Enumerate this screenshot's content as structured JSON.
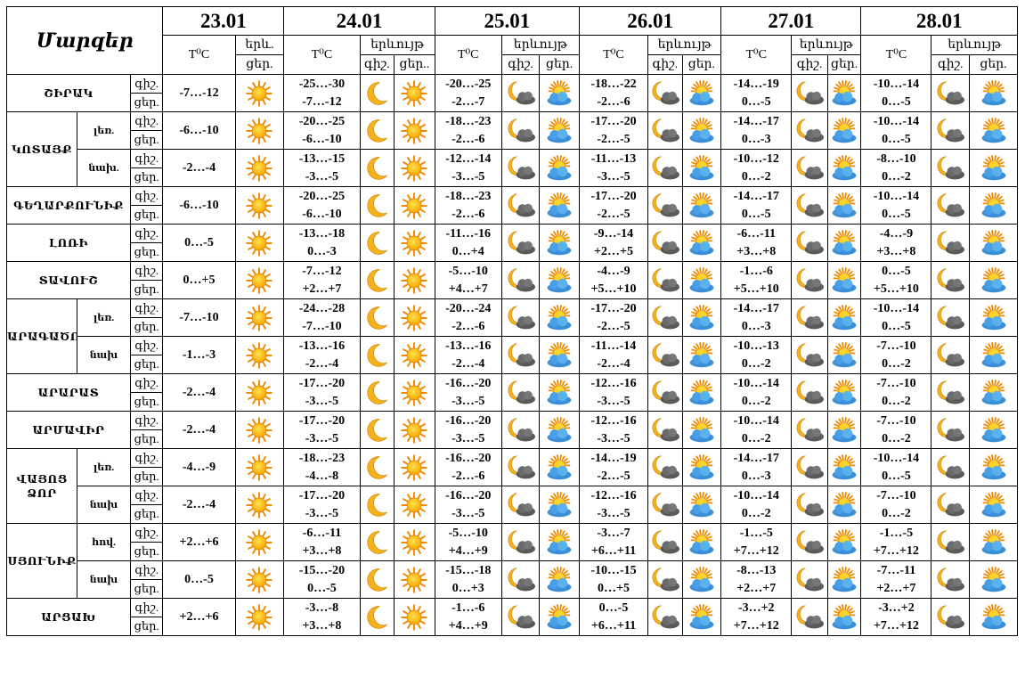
{
  "header": {
    "title": "Մարզեր",
    "dates": [
      "23.01",
      "24.01",
      "25.01",
      "26.01",
      "27.01",
      "28.01"
    ],
    "temp_label": "T⁰C",
    "phen_label_first": "երև.",
    "phen_label": "երևույթ",
    "night": "գիշ.",
    "day": "ցեր.",
    "day_short_24": "ցեր.."
  },
  "rows_dn": {
    "night": "գիշ.",
    "day": "ցեր."
  },
  "icon_colors": {
    "sun": "#f7a600",
    "moon": "#f6b21d",
    "cloud_dark": "#5a5a5a",
    "cloud_blue": "#3b8fd6"
  },
  "regions": [
    {
      "name": "ՇԻՐԱԿ",
      "t1": "-7…-12",
      "d24n": "-25…-30",
      "d24d": "-7…-12",
      "d25n": "-20…-25",
      "d25d": "-2…-7",
      "d26n": "-18…-22",
      "d26d": "-2…-6",
      "d27n": "-14…-19",
      "d27d": "0…-5",
      "d28n": "-10…-14",
      "d28d": "0…-5"
    },
    {
      "name": "ԿՈՏԱՅՔ",
      "sub": "լեռ.",
      "t1": "-6…-10",
      "d24n": "-20…-25",
      "d24d": "-6…-10",
      "d25n": "-18…-23",
      "d25d": "-2…-6",
      "d26n": "-17…-20",
      "d26d": "-2…-5",
      "d27n": "-14…-17",
      "d27d": "0…-3",
      "d28n": "-10…-14",
      "d28d": "0…-5"
    },
    {
      "sub": "նախ.",
      "t1": "-2…-4",
      "d24n": "-13…-15",
      "d24d": "-3…-5",
      "d25n": "-12…-14",
      "d25d": "-3…-5",
      "d26n": "-11…-13",
      "d26d": "-3…-5",
      "d27n": "-10…-12",
      "d27d": "0…-2",
      "d28n": "-8…-10",
      "d28d": "0…-2"
    },
    {
      "name": "ԳԵՂԱՐՔՈՒՆԻՔ",
      "t1": "-6…-10",
      "d24n": "-20…-25",
      "d24d": "-6…-10",
      "d25n": "-18…-23",
      "d25d": "-2…-6",
      "d26n": "-17…-20",
      "d26d": "-2…-5",
      "d27n": "-14…-17",
      "d27d": "0…-5",
      "d28n": "-10…-14",
      "d28d": "0…-5"
    },
    {
      "name": "ԼՈՌԻ",
      "t1": "0…-5",
      "d24n": "-13…-18",
      "d24d": "0…-3",
      "d25n": "-11…-16",
      "d25d": "0…+4",
      "d26n": "-9…-14",
      "d26d": "+2…+5",
      "d27n": "-6…-11",
      "d27d": "+3…+8",
      "d28n": "-4…-9",
      "d28d": "+3…+8"
    },
    {
      "name": "ՏԱՎՈՒՇ",
      "t1": "0…+5",
      "d24n": "-7…-12",
      "d24d": "+2…+7",
      "d25n": "-5…-10",
      "d25d": "+4…+7",
      "d26n": "-4…-9",
      "d26d": "+5…+10",
      "d27n": "-1…-6",
      "d27d": "+5…+10",
      "d28n": "0…-5",
      "d28d": "+5…+10"
    },
    {
      "name": "ԱՐԱԳԱԾՈՏՆ",
      "sub": "լեռ.",
      "t1": "-7…-10",
      "d24n": "-24…-28",
      "d24d": "-7…-10",
      "d25n": "-20…-24",
      "d25d": "-2…-6",
      "d26n": "-17…-20",
      "d26d": "-2…-5",
      "d27n": "-14…-17",
      "d27d": "0…-3",
      "d28n": "-10…-14",
      "d28d": "0…-5"
    },
    {
      "sub": "նախ",
      "t1": "-1…-3",
      "d24n": "-13…-16",
      "d24d": "-2…-4",
      "d25n": "-13…-16",
      "d25d": "-2…-4",
      "d26n": "-11…-14",
      "d26d": "-2…-4",
      "d27n": "-10…-13",
      "d27d": "0…-2",
      "d28n": "-7…-10",
      "d28d": "0…-2"
    },
    {
      "name": "ԱՐԱՐԱՏ",
      "t1": "-2…-4",
      "d24n": "-17…-20",
      "d24d": "-3…-5",
      "d25n": "-16…-20",
      "d25d": "-3…-5",
      "d26n": "-12…-16",
      "d26d": "-3…-5",
      "d27n": "-10…-14",
      "d27d": "0…-2",
      "d28n": "-7…-10",
      "d28d": "0…-2"
    },
    {
      "name": "ԱՐՄԱՎԻՐ",
      "t1": "-2…-4",
      "d24n": "-17…-20",
      "d24d": "-3…-5",
      "d25n": "-16…-20",
      "d25d": "-3…-5",
      "d26n": "-12…-16",
      "d26d": "-3…-5",
      "d27n": "-10…-14",
      "d27d": "0…-2",
      "d28n": "-7…-10",
      "d28d": "0…-2"
    },
    {
      "name": "ՎԱՅՈՑ ՁՈՐ",
      "sub": "լեռ.",
      "t1": "-4…-9",
      "d24n": "-18…-23",
      "d24d": "-4…-8",
      "d25n": "-16…-20",
      "d25d": "-2…-6",
      "d26n": "-14…-19",
      "d26d": "-2…-5",
      "d27n": "-14…-17",
      "d27d": "0…-3",
      "d28n": "-10…-14",
      "d28d": "0…-5"
    },
    {
      "sub": "նախ",
      "t1": "-2…-4",
      "d24n": "-17…-20",
      "d24d": "-3…-5",
      "d25n": "-16…-20",
      "d25d": "-3…-5",
      "d26n": "-12…-16",
      "d26d": "-3…-5",
      "d27n": "-10…-14",
      "d27d": "0…-2",
      "d28n": "-7…-10",
      "d28d": "0…-2"
    },
    {
      "name": "ՍՅՈՒՆԻՔ",
      "sub": "հով.",
      "t1": "+2…+6",
      "d24n": "-6…-11",
      "d24d": "+3…+8",
      "d25n": "-5…-10",
      "d25d": "+4…+9",
      "d26n": "-3…-7",
      "d26d": "+6…+11",
      "d27n": "-1…-5",
      "d27d": "+7…+12",
      "d28n": "-1…-5",
      "d28d": "+7…+12"
    },
    {
      "sub": "նախ",
      "t1": "0…-5",
      "d24n": "-15…-20",
      "d24d": "0…-5",
      "d25n": "-15…-18",
      "d25d": "0…+3",
      "d26n": "-10…-15",
      "d26d": "0…+5",
      "d27n": "-8…-13",
      "d27d": "+2…+7",
      "d28n": "-7…-11",
      "d28d": "+2…+7"
    },
    {
      "name": "ԱՐՑԱԽ",
      "t1": "+2…+6",
      "d24n": "-3…-8",
      "d24d": "+3…+8",
      "d25n": "-1…-6",
      "d25d": "+4…+9",
      "d26n": "0…-5",
      "d26d": "+6…+11",
      "d27n": "-3…+2",
      "d27d": "+7…+12",
      "d28n": "-3…+2",
      "d28d": "+7…+12"
    }
  ]
}
